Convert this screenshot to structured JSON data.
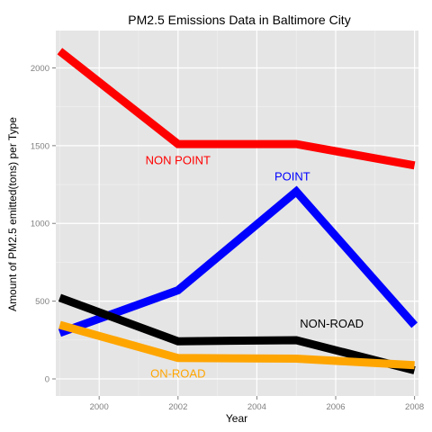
{
  "chart_data": {
    "type": "line",
    "title": "PM2.5 Emissions Data in Baltimore City",
    "xlabel": "Year",
    "ylabel": "Amount of PM2.5 emitted(tons) per Type",
    "x": [
      1999,
      2002,
      2005,
      2008
    ],
    "xlim": [
      1998.9,
      2008.1
    ],
    "ylim": [
      -110,
      2240
    ],
    "x_ticks": [
      2000,
      2002,
      2004,
      2006,
      2008
    ],
    "y_ticks": [
      0,
      500,
      1000,
      1500,
      2000
    ],
    "grid": true,
    "legend": "none",
    "series": [
      {
        "name": "NON POINT",
        "color": "#ff0000",
        "values": [
          2108,
          1510,
          1510,
          1373
        ],
        "label": {
          "text": "NON POINT",
          "x": 2002.0,
          "y": 1380
        }
      },
      {
        "name": "POINT",
        "color": "#0000ff",
        "values": [
          296,
          570,
          1205,
          345
        ],
        "label": {
          "text": "POINT",
          "x": 2004.9,
          "y": 1275
        }
      },
      {
        "name": "NON-ROAD",
        "color": "#000000",
        "values": [
          522,
          242,
          249,
          55
        ],
        "label": {
          "text": "NON-ROAD",
          "x": 2005.9,
          "y": 330
        }
      },
      {
        "name": "ON-ROAD",
        "color": "#ffa500",
        "values": [
          347,
          134,
          130,
          88
        ],
        "label": {
          "text": "ON-ROAD",
          "x": 2002.0,
          "y": 10
        }
      }
    ]
  }
}
